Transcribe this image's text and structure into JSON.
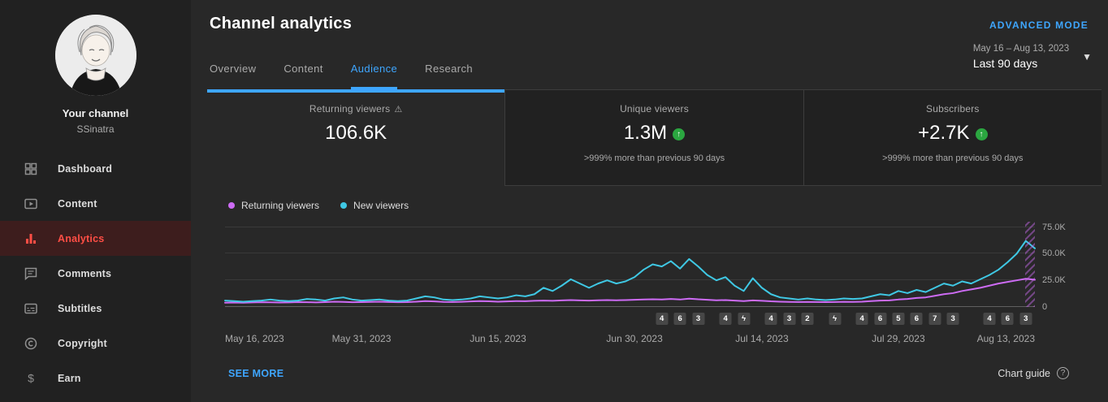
{
  "colors": {
    "accent_blue": "#3ea6ff",
    "accent_red": "#ff4e45",
    "positive_green": "#2ba640",
    "returning_viewers": "#cd6bf4",
    "new_viewers": "#3fc8e4"
  },
  "icons": {
    "warning": "⚠",
    "up_arrow": "↑",
    "question": "?",
    "caret": "▼",
    "lightning": "ϟ"
  },
  "sidebar": {
    "channel_label": "Your channel",
    "channel_name": "SSinatra",
    "items": [
      {
        "label": "Dashboard",
        "icon": "dashboard-icon",
        "active": false
      },
      {
        "label": "Content",
        "icon": "content-icon",
        "active": false
      },
      {
        "label": "Analytics",
        "icon": "analytics-icon",
        "active": true
      },
      {
        "label": "Comments",
        "icon": "comments-icon",
        "active": false
      },
      {
        "label": "Subtitles",
        "icon": "subtitles-icon",
        "active": false
      },
      {
        "label": "Copyright",
        "icon": "copyright-icon",
        "active": false
      },
      {
        "label": "Earn",
        "icon": "earn-icon",
        "active": false
      }
    ]
  },
  "header": {
    "title": "Channel analytics",
    "advanced_mode": "ADVANCED MODE",
    "tabs": [
      {
        "label": "Overview",
        "active": false
      },
      {
        "label": "Content",
        "active": false
      },
      {
        "label": "Audience",
        "active": true
      },
      {
        "label": "Research",
        "active": false
      }
    ],
    "date_range": "May 16 – Aug 13, 2023",
    "date_preset": "Last 90 days"
  },
  "metrics": [
    {
      "label": "Returning viewers",
      "value": "106.6K",
      "warning": true,
      "active": true,
      "subtitle": ""
    },
    {
      "label": "Unique viewers",
      "value": "1.3M",
      "delta_positive": true,
      "subtitle": ">999% more than previous 90 days"
    },
    {
      "label": "Subscribers",
      "value": "+2.7K",
      "delta_positive": true,
      "subtitle": ">999% more than previous 90 days"
    }
  ],
  "chart_data": {
    "type": "line",
    "unit": "viewers (thousands)",
    "ylim": [
      0,
      80
    ],
    "x_ticks": [
      {
        "label": "May 16, 2023",
        "day": 0
      },
      {
        "label": "May 31, 2023",
        "day": 15
      },
      {
        "label": "Jun 15, 2023",
        "day": 30
      },
      {
        "label": "Jun 30, 2023",
        "day": 45
      },
      {
        "label": "Jul 14, 2023",
        "day": 59
      },
      {
        "label": "Jul 29, 2023",
        "day": 74
      },
      {
        "label": "Aug 13, 2023",
        "day": 89
      }
    ],
    "y_ticks": [
      {
        "label": "75.0K",
        "value": 75
      },
      {
        "label": "50.0K",
        "value": 50
      },
      {
        "label": "25.0K",
        "value": 25
      },
      {
        "label": "0",
        "value": 0
      }
    ],
    "series": [
      {
        "name": "Returning viewers",
        "color": "#cd6bf4",
        "values": [
          4.0,
          4.2,
          4.0,
          4.3,
          4.5,
          4.4,
          4.2,
          4.3,
          4.6,
          4.5,
          4.3,
          4.6,
          5.0,
          4.8,
          4.5,
          4.6,
          4.8,
          5.0,
          4.7,
          4.5,
          4.6,
          5.0,
          5.5,
          5.2,
          4.8,
          4.7,
          4.9,
          5.2,
          5.5,
          5.3,
          5.0,
          5.2,
          5.5,
          5.4,
          5.8,
          6.0,
          5.8,
          6.2,
          6.5,
          6.2,
          6.0,
          6.3,
          6.5,
          6.3,
          6.5,
          6.8,
          7.0,
          7.2,
          7.0,
          7.5,
          7.0,
          7.8,
          7.2,
          6.8,
          6.3,
          6.5,
          6.0,
          5.5,
          6.2,
          5.8,
          5.3,
          5.0,
          4.8,
          4.7,
          4.8,
          4.7,
          4.6,
          4.7,
          4.9,
          4.8,
          5.0,
          5.5,
          6.0,
          6.2,
          7.0,
          7.5,
          8.5,
          9.0,
          10.5,
          12.0,
          13.0,
          15.0,
          16.5,
          18.0,
          20.0,
          22.0,
          23.5,
          25.0,
          26.5,
          25.5
        ]
      },
      {
        "name": "New viewers",
        "color": "#3fc8e4",
        "values": [
          6.0,
          5.5,
          5.0,
          5.5,
          6.0,
          7.0,
          6.0,
          5.5,
          6.0,
          7.5,
          7.0,
          6.0,
          8.0,
          9.0,
          7.0,
          6.0,
          6.5,
          7.0,
          6.0,
          5.5,
          6.0,
          8.0,
          10.0,
          9.0,
          7.0,
          6.5,
          7.0,
          8.0,
          10.0,
          9.0,
          8.0,
          9.0,
          11.0,
          10.0,
          12.0,
          18.0,
          15.0,
          20.0,
          26.0,
          22.0,
          18.0,
          22.0,
          25.0,
          22.0,
          24.0,
          28.0,
          35.0,
          40.0,
          38.0,
          43.0,
          36.0,
          45.0,
          38.0,
          30.0,
          25.0,
          28.0,
          20.0,
          15.0,
          27.0,
          18.0,
          12.0,
          9.0,
          8.0,
          7.0,
          8.0,
          7.0,
          6.5,
          7.0,
          8.0,
          7.5,
          8.0,
          10.0,
          12.0,
          11.0,
          15.0,
          13.0,
          16.0,
          14.0,
          18.0,
          22.0,
          20.0,
          24.0,
          22.0,
          26.0,
          30.0,
          35.0,
          42.0,
          50.0,
          62.0,
          55.0
        ]
      }
    ],
    "markers": [
      {
        "label": "4",
        "day": 48
      },
      {
        "label": "6",
        "day": 50
      },
      {
        "label": "3",
        "day": 52
      },
      {
        "label": "4",
        "day": 55
      },
      {
        "icon": "lightning",
        "day": 57
      },
      {
        "label": "4",
        "day": 60
      },
      {
        "label": "3",
        "day": 62
      },
      {
        "label": "2",
        "day": 64
      },
      {
        "icon": "lightning",
        "day": 67
      },
      {
        "label": "4",
        "day": 70
      },
      {
        "label": "6",
        "day": 72
      },
      {
        "label": "5",
        "day": 74
      },
      {
        "label": "6",
        "day": 76
      },
      {
        "label": "7",
        "day": 78
      },
      {
        "label": "3",
        "day": 80
      },
      {
        "label": "4",
        "day": 84
      },
      {
        "label": "6",
        "day": 86
      },
      {
        "label": "3",
        "day": 88
      }
    ]
  },
  "footer": {
    "see_more": "SEE MORE",
    "chart_guide_label": "Chart guide"
  }
}
